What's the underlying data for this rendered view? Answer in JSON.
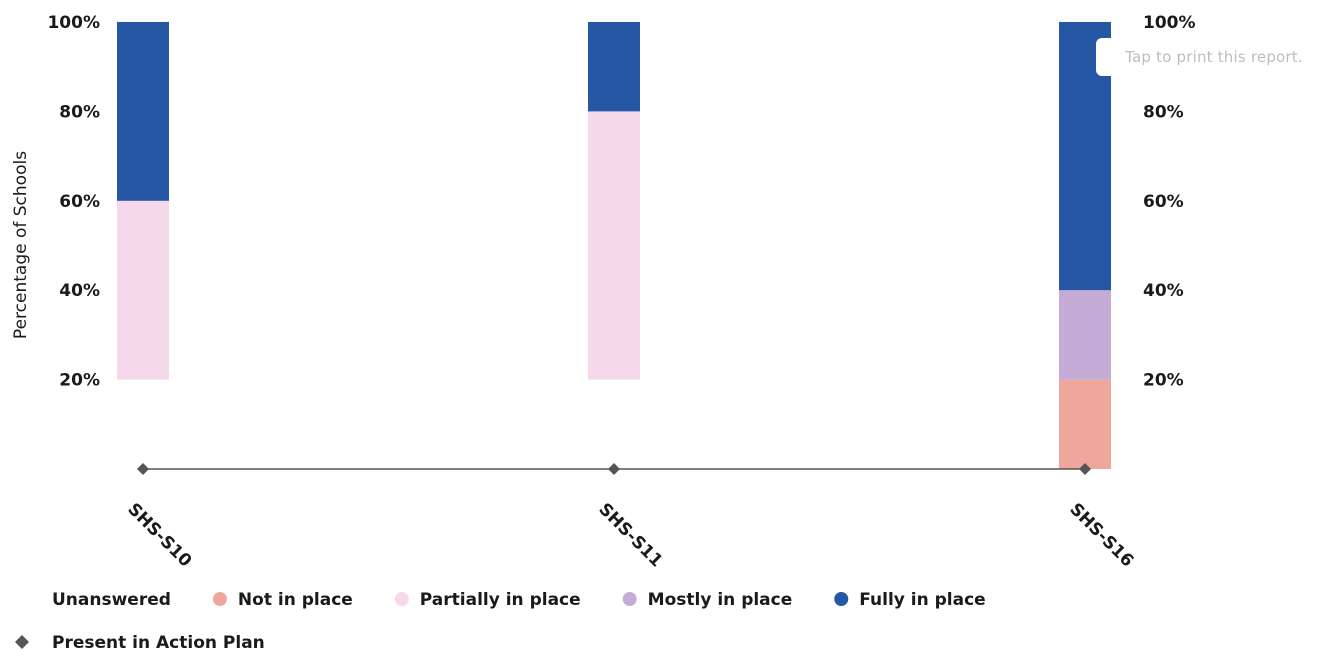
{
  "chart_data": {
    "type": "bar",
    "stacked": true,
    "categories": [
      "SHS-S10",
      "SHS-S11",
      "SHS-S16"
    ],
    "ylabel": "Percentage of Schools",
    "ylim": [
      0,
      100
    ],
    "y_tick_values": [
      20,
      40,
      60,
      80,
      100
    ],
    "y_tick_labels": [
      "20%",
      "40%",
      "60%",
      "80%",
      "100%"
    ],
    "series": [
      {
        "name": "Unanswered",
        "color": "#ffffff",
        "values": [
          20,
          20,
          0
        ]
      },
      {
        "name": "Not in place",
        "color": "#f0a79b",
        "values": [
          0,
          0,
          20
        ]
      },
      {
        "name": "Partially in place",
        "color": "#f5d8ea",
        "values": [
          40,
          60,
          0
        ]
      },
      {
        "name": "Mostly in place",
        "color": "#c4acd6",
        "values": [
          0,
          0,
          20
        ]
      },
      {
        "name": "Fully in place",
        "color": "#2557a4",
        "values": [
          40,
          20,
          60
        ]
      }
    ],
    "action_plan": {
      "name": "Present in Action Plan",
      "color": "#555555",
      "values": [
        0,
        0,
        0
      ]
    },
    "legend_position": "bottom",
    "grid": false
  },
  "tooltip": {
    "text": "Tap to print this report."
  }
}
